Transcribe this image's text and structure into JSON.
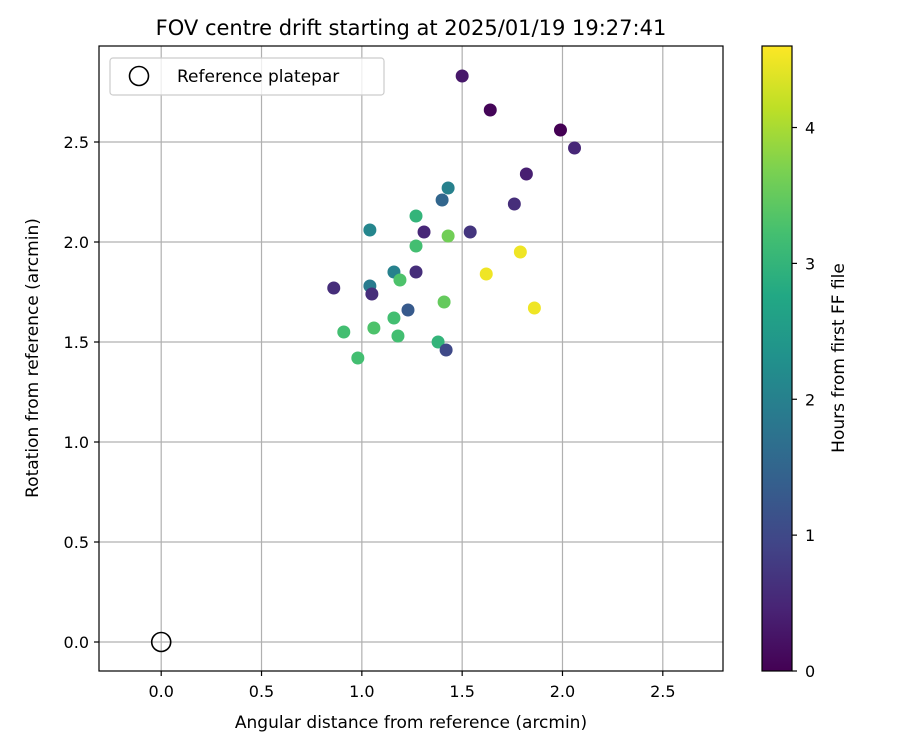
{
  "chart_data": {
    "type": "scatter",
    "title": "FOV centre drift starting at 2025/01/19 19:27:41",
    "xlabel": "Angular distance from reference (arcmin)",
    "ylabel": "Rotation from reference (arcmin)",
    "xlim": [
      -0.31,
      2.8
    ],
    "ylim": [
      -0.145,
      2.98
    ],
    "xticks": [
      0.0,
      0.5,
      1.0,
      1.5,
      2.0,
      2.5
    ],
    "xtick_labels": [
      "0.0",
      "0.5",
      "1.0",
      "1.5",
      "2.0",
      "2.5"
    ],
    "yticks": [
      0.0,
      0.5,
      1.0,
      1.5,
      2.0,
      2.5
    ],
    "ytick_labels": [
      "0.0",
      "0.5",
      "1.0",
      "1.5",
      "2.0",
      "2.5"
    ],
    "grid": true,
    "legend": {
      "position": "upper left",
      "entries": [
        "Reference platepar"
      ]
    },
    "reference_point": {
      "x": 0.0,
      "y": 0.0,
      "label": "Reference platepar"
    },
    "colorbar": {
      "label": "Hours from first FF file",
      "colormap": "viridis",
      "range": [
        0,
        4.6
      ],
      "ticks": [
        0,
        1,
        2,
        3,
        4
      ],
      "tick_labels": [
        "0",
        "1",
        "2",
        "3",
        "4"
      ]
    },
    "points": [
      {
        "x": 1.5,
        "y": 2.83,
        "hours": 0.3
      },
      {
        "x": 1.64,
        "y": 2.66,
        "hours": 0.05
      },
      {
        "x": 1.99,
        "y": 2.56,
        "hours": 0.0
      },
      {
        "x": 2.06,
        "y": 2.47,
        "hours": 0.5
      },
      {
        "x": 1.82,
        "y": 2.34,
        "hours": 0.4
      },
      {
        "x": 1.43,
        "y": 2.27,
        "hours": 2.0
      },
      {
        "x": 1.4,
        "y": 2.21,
        "hours": 1.5
      },
      {
        "x": 1.76,
        "y": 2.19,
        "hours": 0.6
      },
      {
        "x": 1.27,
        "y": 2.13,
        "hours": 3.0
      },
      {
        "x": 1.04,
        "y": 2.06,
        "hours": 2.1
      },
      {
        "x": 1.31,
        "y": 2.05,
        "hours": 0.5
      },
      {
        "x": 1.54,
        "y": 2.05,
        "hours": 0.7
      },
      {
        "x": 1.43,
        "y": 2.03,
        "hours": 3.6
      },
      {
        "x": 1.27,
        "y": 1.98,
        "hours": 3.2
      },
      {
        "x": 1.79,
        "y": 1.95,
        "hours": 4.5
      },
      {
        "x": 1.16,
        "y": 1.85,
        "hours": 2.0
      },
      {
        "x": 1.27,
        "y": 1.85,
        "hours": 0.6
      },
      {
        "x": 1.62,
        "y": 1.84,
        "hours": 4.5
      },
      {
        "x": 1.19,
        "y": 1.81,
        "hours": 3.3
      },
      {
        "x": 1.04,
        "y": 1.78,
        "hours": 1.9
      },
      {
        "x": 0.86,
        "y": 1.77,
        "hours": 0.6
      },
      {
        "x": 1.05,
        "y": 1.74,
        "hours": 0.6
      },
      {
        "x": 1.41,
        "y": 1.7,
        "hours": 3.5
      },
      {
        "x": 1.86,
        "y": 1.67,
        "hours": 4.5
      },
      {
        "x": 1.23,
        "y": 1.66,
        "hours": 1.3
      },
      {
        "x": 1.16,
        "y": 1.62,
        "hours": 3.2
      },
      {
        "x": 1.06,
        "y": 1.57,
        "hours": 3.3
      },
      {
        "x": 0.91,
        "y": 1.55,
        "hours": 3.2
      },
      {
        "x": 1.18,
        "y": 1.53,
        "hours": 3.2
      },
      {
        "x": 1.38,
        "y": 1.5,
        "hours": 3.0
      },
      {
        "x": 1.42,
        "y": 1.46,
        "hours": 1.0
      },
      {
        "x": 0.98,
        "y": 1.42,
        "hours": 3.2
      }
    ]
  }
}
